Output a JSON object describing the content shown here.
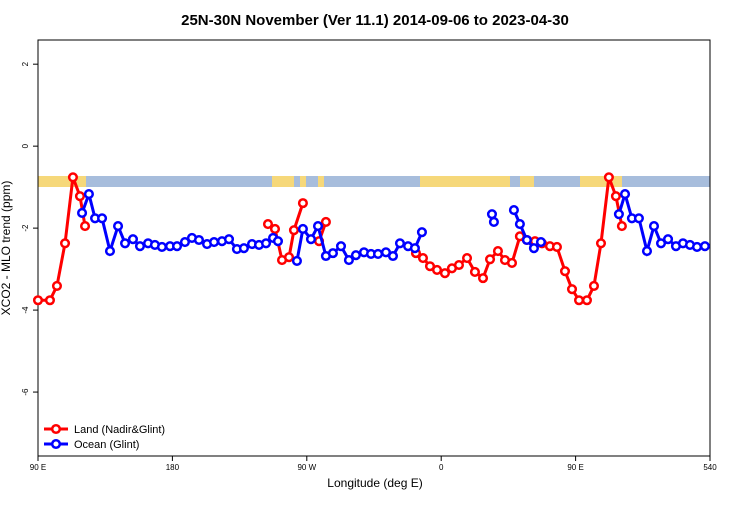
{
  "chart_data": {
    "type": "line",
    "title": "25N-30N November (Ver 11.1)   2014-09-06 to 2023-04-30",
    "x_label": "Longitude (deg E)",
    "y_label": "XCO2 - MLO trend (ppm)",
    "xlim": [
      90,
      540
    ],
    "ylim": [
      -7.56,
      2.59
    ],
    "xticks": [
      {
        "value": 90,
        "label": "90 E"
      },
      180,
      {
        "value": 270,
        "label": "90 W"
      },
      {
        "value": 360,
        "label": "0"
      },
      {
        "value": 450,
        "label": "90 E"
      },
      540
    ],
    "yticks": [
      -6,
      -4,
      -2,
      0,
      2
    ],
    "legend": "bottom-left",
    "series": [
      {
        "name": "Land (Nadir&Glint)",
        "color": "#ff0000",
        "x": [
          90,
          98.0,
          102.7,
          108.1,
          113.4,
          118.1,
          121.5,
          null,
          244.0,
          248.7,
          253.4,
          258.1,
          261.4,
          267.4,
          null,
          278.2,
          282.8,
          null,
          343.1,
          347.8,
          352.5,
          357.2,
          362.5,
          367.2,
          371.9,
          377.3,
          382.6,
          388.0,
          392.7,
          398.0,
          402.7,
          407.4,
          412.7,
          417.4,
          422.8,
          427.5,
          432.8,
          437.5,
          442.9,
          447.6,
          452.3,
          457.6,
          462.3,
          467.0,
          472.3,
          477.0,
          481.0
        ],
        "values": [
          -3.76,
          -3.76,
          -3.41,
          -2.37,
          -0.76,
          -1.22,
          -1.95,
          null,
          -1.9,
          -2.02,
          -2.78,
          -2.71,
          -2.05,
          -1.39,
          null,
          -2.32,
          -1.85,
          null,
          -2.61,
          -2.73,
          -2.93,
          -3.02,
          -3.1,
          -2.98,
          -2.9,
          -2.73,
          -3.07,
          -3.22,
          -2.76,
          -2.56,
          -2.78,
          -2.85,
          -2.2,
          -2.29,
          -2.32,
          -2.37,
          -2.44,
          -2.46,
          -3.05,
          -3.49,
          -3.76,
          -3.76,
          -3.41,
          -2.37,
          -0.76,
          -1.22,
          -1.95
        ]
      },
      {
        "name": "Ocean (Glint)",
        "color": "#0000ff",
        "x": [
          119.5,
          124.1,
          128.2,
          132.9,
          138.2,
          143.6,
          148.3,
          153.6,
          158.3,
          163.7,
          168.3,
          173.0,
          178.4,
          183.1,
          188.4,
          193.1,
          197.8,
          203.2,
          207.9,
          213.2,
          217.9,
          223.2,
          227.9,
          233.3,
          238.0,
          242.7,
          247.4,
          250.7,
          null,
          263.4,
          267.4,
          272.8,
          277.5,
          282.8,
          287.5,
          292.9,
          298.2,
          302.9,
          308.3,
          313.0,
          317.7,
          323.0,
          327.7,
          332.4,
          337.8,
          342.4,
          347.1,
          null,
          394.0,
          395.3,
          null,
          408.7,
          412.7,
          417.4,
          422.1,
          426.8,
          null,
          479.0,
          483.1,
          487.7,
          492.4,
          497.8,
          502.5,
          507.2,
          511.9,
          517.2,
          521.9,
          526.6,
          531.3,
          536.6
        ],
        "values": [
          -1.63,
          -1.17,
          -1.76,
          -1.76,
          -2.56,
          -1.95,
          -2.37,
          -2.27,
          -2.44,
          -2.37,
          -2.41,
          -2.46,
          -2.44,
          -2.44,
          -2.34,
          -2.24,
          -2.29,
          -2.39,
          -2.34,
          -2.32,
          -2.27,
          -2.51,
          -2.49,
          -2.39,
          -2.41,
          -2.37,
          -2.24,
          -2.32,
          null,
          -2.8,
          -2.02,
          -2.27,
          -1.95,
          -2.68,
          -2.61,
          -2.44,
          -2.78,
          -2.66,
          -2.59,
          -2.63,
          -2.63,
          -2.59,
          -2.68,
          -2.37,
          -2.44,
          -2.49,
          -2.1,
          null,
          -1.66,
          -1.85,
          null,
          -1.56,
          -1.9,
          -2.29,
          -2.49,
          -2.34,
          null,
          -1.66,
          -1.17,
          -1.76,
          -1.76,
          -2.56,
          -1.95,
          -2.37,
          -2.27,
          -2.44,
          -2.37,
          -2.41,
          -2.46,
          -2.44
        ]
      }
    ]
  }
}
